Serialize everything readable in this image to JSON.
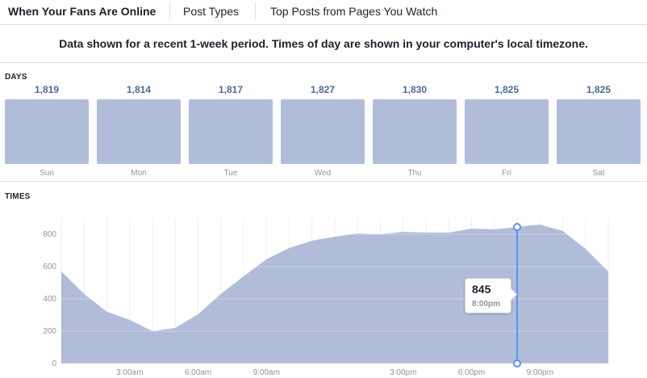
{
  "tabs": [
    {
      "label": "When Your Fans Are Online",
      "active": true
    },
    {
      "label": "Post Types",
      "active": false
    },
    {
      "label": "Top Posts from Pages You Watch",
      "active": false
    }
  ],
  "notice": "Data shown for a recent 1-week period. Times of day are shown in your computer's local timezone.",
  "days_section": {
    "label": "DAYS",
    "days": [
      {
        "name": "Sun",
        "count": "1,819"
      },
      {
        "name": "Mon",
        "count": "1,814"
      },
      {
        "name": "Tue",
        "count": "1,817"
      },
      {
        "name": "Wed",
        "count": "1,827"
      },
      {
        "name": "Thu",
        "count": "1,830"
      },
      {
        "name": "Fri",
        "count": "1,825"
      },
      {
        "name": "Sat",
        "count": "1,825"
      }
    ]
  },
  "times_section": {
    "label": "TIMES",
    "tooltip": {
      "value": "845",
      "time": "8:00pm"
    }
  },
  "colors": {
    "area": "#b1bdd8",
    "accent": "#5890ff",
    "count_text": "#4b67a1"
  },
  "chart_data": {
    "type": "area",
    "x_hours": [
      0,
      1,
      2,
      3,
      4,
      5,
      6,
      7,
      8,
      9,
      10,
      11,
      12,
      13,
      14,
      15,
      16,
      17,
      18,
      19,
      20,
      21,
      22,
      23,
      24
    ],
    "values": [
      570,
      430,
      320,
      270,
      200,
      220,
      305,
      430,
      540,
      645,
      715,
      760,
      785,
      805,
      800,
      815,
      810,
      810,
      835,
      830,
      845,
      860,
      820,
      710,
      570
    ],
    "xticks": [
      {
        "hour": 3,
        "label": "3:00am"
      },
      {
        "hour": 6,
        "label": "6:00am"
      },
      {
        "hour": 9,
        "label": "9:00am"
      },
      {
        "hour": 15,
        "label": "3:00pm"
      },
      {
        "hour": 18,
        "label": "6:00pm"
      },
      {
        "hour": 21,
        "label": "9:00pm"
      }
    ],
    "yticks": [
      0,
      200,
      400,
      600,
      800
    ],
    "ylim": [
      0,
      900
    ],
    "grid": true,
    "highlight": {
      "hour": 20,
      "value": 845
    }
  }
}
